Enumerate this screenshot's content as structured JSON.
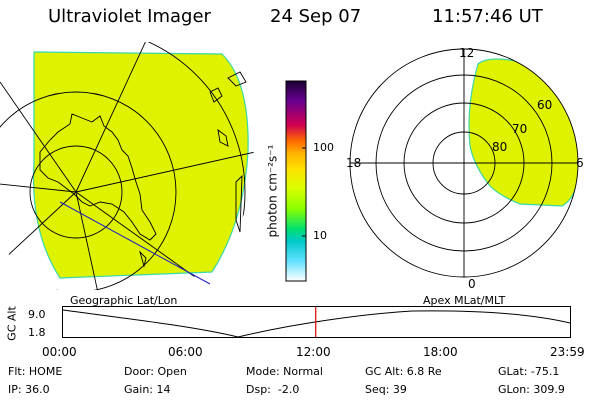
{
  "header": {
    "instrument": "Ultraviolet Imager",
    "date": "24 Sep 07",
    "time": "11:57:46 UT"
  },
  "colorbar": {
    "unit_label": "photon cm⁻²s⁻¹",
    "tick_100": "100",
    "tick_10": "10",
    "colors": [
      "#1a0033",
      "#6a0090",
      "#d00050",
      "#ff6a00",
      "#ffb000",
      "#ffe200",
      "#d8ff00",
      "#88ff00",
      "#00e070",
      "#00c8c8",
      "#60e0ff",
      "#ffffff"
    ]
  },
  "left_panel": {
    "caption": "Geographic Lat/Lon"
  },
  "right_panel": {
    "caption": "Apex MLat/MLT",
    "mlt_labels": {
      "top": "12",
      "left": "18",
      "right": "6",
      "bottom": "0"
    },
    "lat_labels": [
      "60",
      "70",
      "80"
    ]
  },
  "timeline": {
    "ylabel": "GC Alt",
    "ymax_label": "9.0",
    "ymin_label": "1.8",
    "ticks": [
      "00:00",
      "06:00",
      "12:00",
      "18:00",
      "23:59"
    ],
    "current_fraction": 0.4985
  },
  "status": {
    "flt": "Flt: HOME",
    "ip": "IP: 36.0",
    "door": "Door: Open",
    "gain": "Gain: 14",
    "mode": "Mode: Normal",
    "dsp": "Dsp:  -2.0",
    "gcalt": "GC Alt: 6.8 Re",
    "seq": "Seq: 39",
    "glat": "GLat: -75.1",
    "glon": "GLon: 309.9"
  },
  "colors": {
    "aurora_fill": "#dff200",
    "aurora_edge": "#38d8a8",
    "current_time_marker": "#e00000"
  }
}
